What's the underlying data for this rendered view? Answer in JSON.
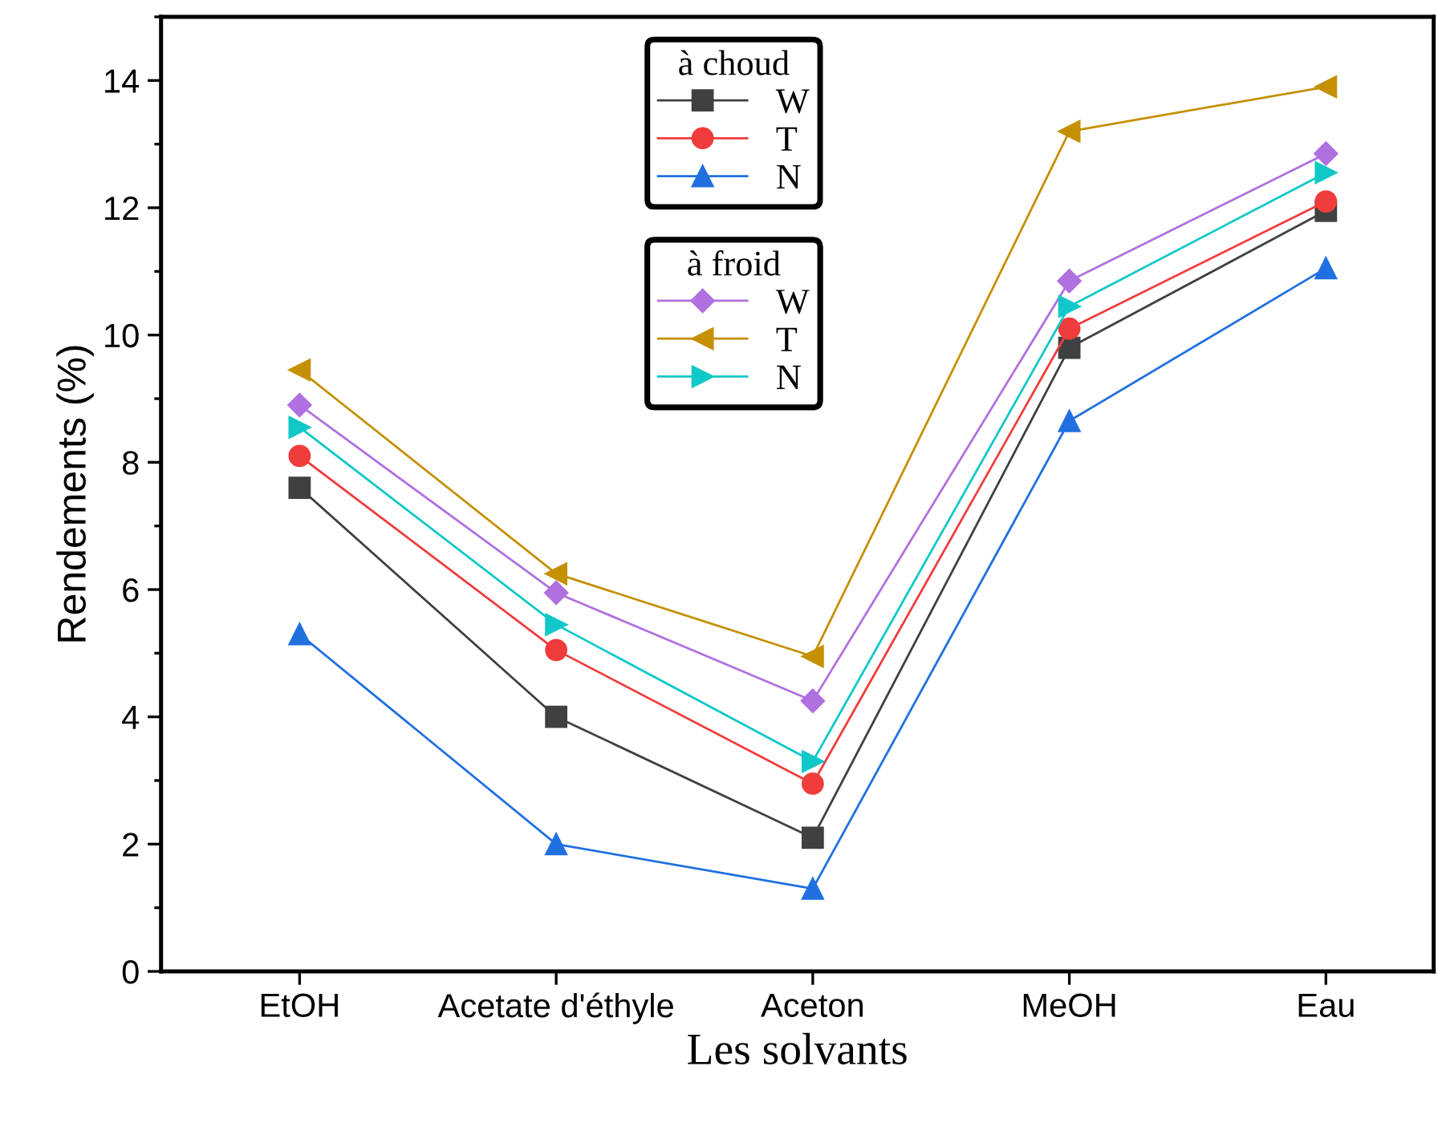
{
  "chart_data": {
    "type": "line",
    "xlabel": "Les solvants",
    "ylabel": "Rendements (%)",
    "categories": [
      "EtOH",
      "Acetate d'éthyle",
      "Aceton",
      "MeOH",
      "Eau"
    ],
    "series": [
      {
        "name": "W",
        "color": "#404040",
        "marker": "square",
        "values": [
          7.6,
          4.0,
          2.1,
          9.8,
          11.95
        ]
      },
      {
        "name": "T",
        "color": "#f03c3c",
        "marker": "circle",
        "values": [
          8.1,
          5.05,
          2.95,
          10.1,
          12.1
        ]
      },
      {
        "name": "N",
        "color": "#2070e0",
        "marker": "triangle",
        "values": [
          5.3,
          2.0,
          1.3,
          8.65,
          11.05
        ]
      },
      {
        "name": "W",
        "color": "#b070e0",
        "marker": "diamond",
        "values": [
          8.9,
          5.95,
          4.25,
          10.85,
          12.85
        ]
      },
      {
        "name": "T",
        "color": "#c49000",
        "marker": "triangle",
        "values": [
          9.45,
          6.25,
          4.95,
          13.2,
          13.9
        ]
      },
      {
        "name": "N",
        "color": "#10c8c8",
        "marker": "triangle",
        "values": [
          8.55,
          5.45,
          3.3,
          10.45,
          12.55
        ]
      }
    ],
    "annotations": [
      "à choud",
      "à froid"
    ],
    "ylim": [
      0,
      15
    ],
    "yticks": [
      0,
      2,
      4,
      6,
      8,
      10,
      12,
      14
    ],
    "grid": false,
    "legend": "top",
    "line_style": "solid"
  }
}
